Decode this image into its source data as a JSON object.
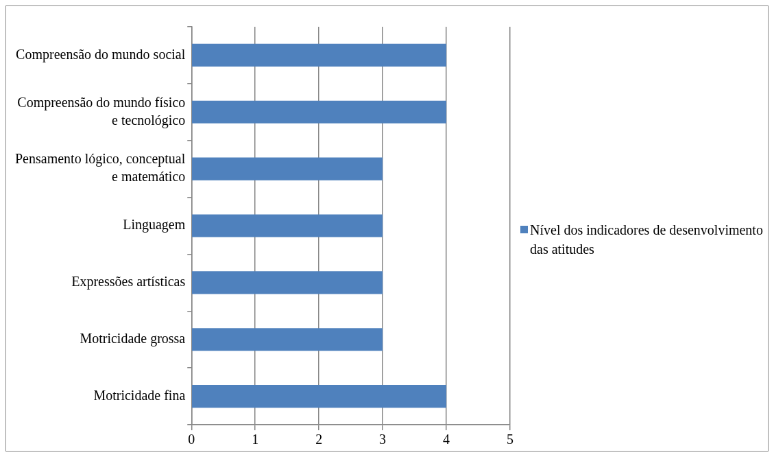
{
  "chart_data": {
    "type": "bar",
    "orientation": "horizontal",
    "categories": [
      "Compreensão do mundo social",
      "Compreensão do mundo físico\ne tecnológico",
      "Pensamento lógico, conceptual\ne matemático",
      "Linguagem",
      "Expressões artísticas",
      "Motricidade grossa",
      "Motricidade fina"
    ],
    "series": [
      {
        "name": "Nível dos indicadores de desenvolvimento das atitudes",
        "color": "#4f81bd",
        "values": [
          4,
          4,
          3,
          3,
          3,
          3,
          4
        ]
      }
    ],
    "xlim": [
      0,
      5
    ],
    "xticks": [
      0,
      1,
      2,
      3,
      4,
      5
    ],
    "grid": "x",
    "legend": "right"
  }
}
